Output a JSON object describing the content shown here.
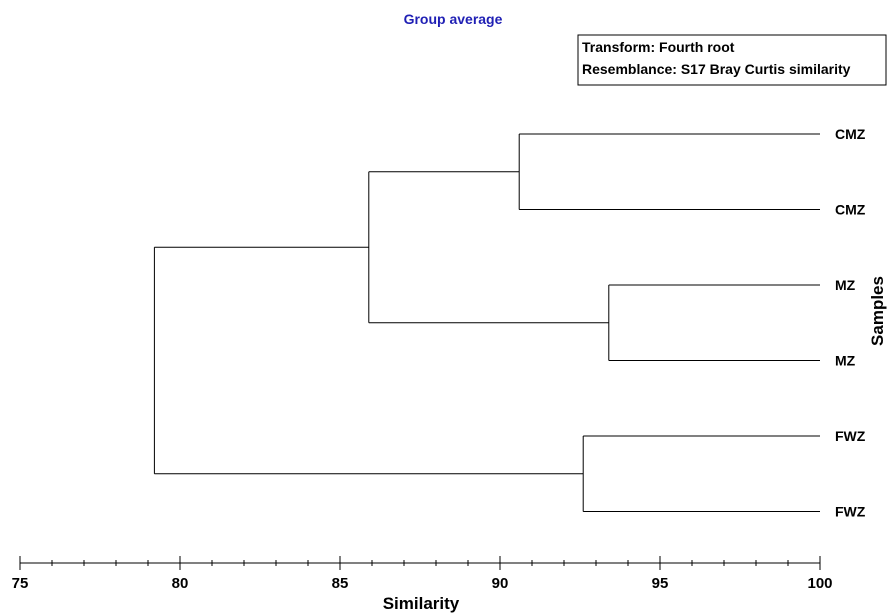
{
  "chart_data": {
    "type": "dendrogram",
    "title": "Group average",
    "annotations": [
      "Transform: Fourth root",
      "Resemblance: S17 Bray Curtis similarity"
    ],
    "xlabel": "Similarity",
    "ylabel": "Samples",
    "xlim": [
      75,
      100
    ],
    "xticks": [
      75,
      80,
      85,
      90,
      95,
      100
    ],
    "leaves": [
      "CMZ",
      "CMZ",
      "MZ",
      "MZ",
      "FWZ",
      "FWZ"
    ],
    "merges": [
      {
        "children": [
          "leaf0",
          "leaf1"
        ],
        "similarity": 90.6
      },
      {
        "children": [
          "leaf2",
          "leaf3"
        ],
        "similarity": 93.4
      },
      {
        "children": [
          "leaf4",
          "leaf5"
        ],
        "similarity": 92.6
      },
      {
        "children": [
          "node0",
          "node1"
        ],
        "similarity": 85.9
      },
      {
        "children": [
          "node3",
          "node2"
        ],
        "similarity": 79.2
      }
    ],
    "colors": {
      "title": "#1f1fb4",
      "lines": "#000000"
    }
  }
}
